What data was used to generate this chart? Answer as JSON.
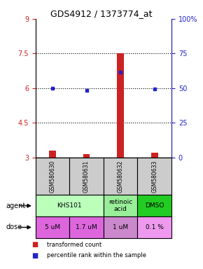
{
  "title": "GDS4912 / 1373774_at",
  "samples": [
    "GSM580630",
    "GSM580631",
    "GSM580632",
    "GSM580633"
  ],
  "bar_values": [
    3.3,
    3.15,
    7.5,
    3.2
  ],
  "bar_base": 3.0,
  "dot_values": [
    6.0,
    5.9,
    6.7,
    5.95
  ],
  "ylim": [
    3.0,
    9.0
  ],
  "yticks_left": [
    3,
    4.5,
    6,
    7.5,
    9
  ],
  "yticks_right": [
    0,
    25,
    50,
    75,
    100
  ],
  "hlines": [
    4.5,
    6.0,
    7.5
  ],
  "bar_color": "#cc2222",
  "dot_color": "#2222cc",
  "agent_groups": [
    [
      0,
      2,
      "KHS101",
      "#bbffbb"
    ],
    [
      2,
      3,
      "retinoic\nacid",
      "#99ee99"
    ],
    [
      3,
      4,
      "DMSO",
      "#22cc22"
    ]
  ],
  "dose_labels": [
    "5 uM",
    "1.7 uM",
    "1 uM",
    "0.1 %"
  ],
  "dose_colors": [
    "#dd66dd",
    "#dd66dd",
    "#cc88cc",
    "#ee99ee"
  ],
  "sample_bg": "#cccccc",
  "legend_red": "transformed count",
  "legend_blue": "percentile rank within the sample",
  "fig_width": 2.9,
  "fig_height": 3.84,
  "dpi": 100
}
